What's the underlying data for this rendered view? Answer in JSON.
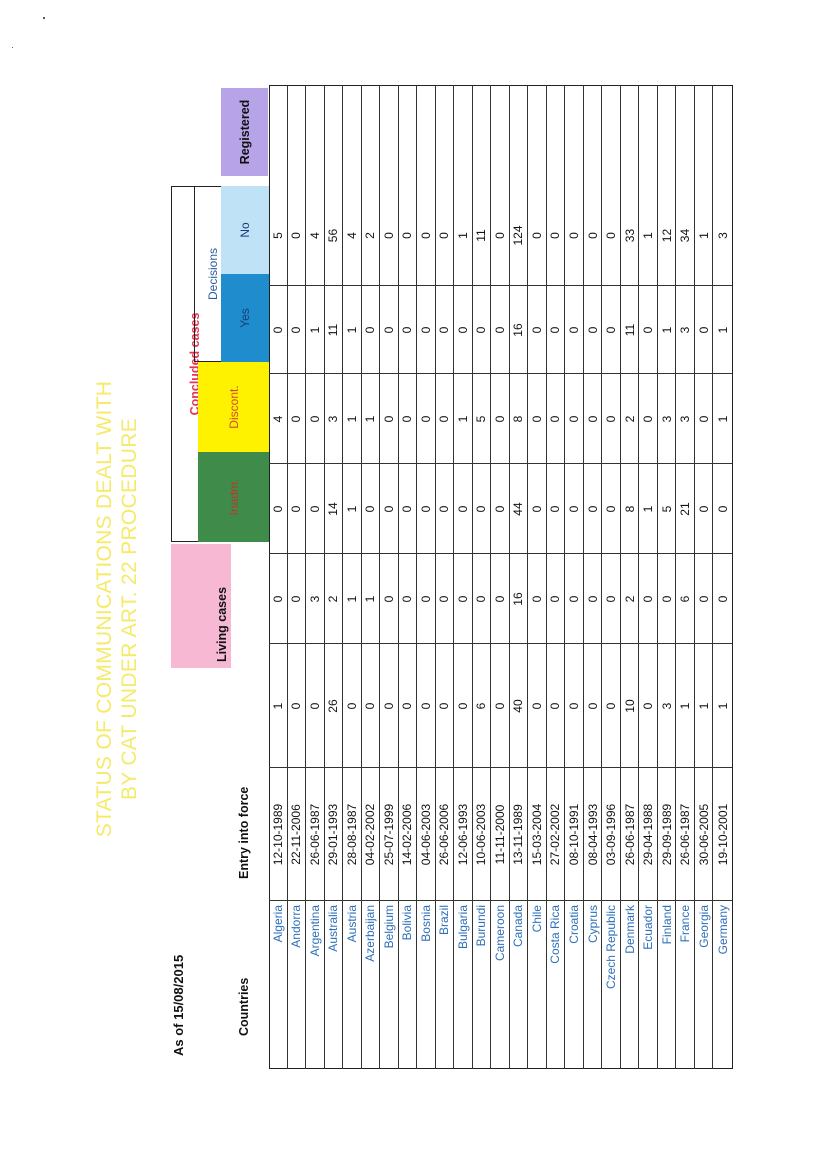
{
  "as_of": "As of 15/08/2015",
  "title": [
    "STATUS OF COMMUNICATIONS DEALT WITH",
    "BY CAT UNDER ART. 22 PROCEDURE"
  ],
  "headers": {
    "countries": "Countries",
    "entry": "Entry into force",
    "living": "Living cases",
    "concluded": "Concluded cases",
    "decisions": "Decisions",
    "inadm": "Inadm.",
    "discont": "Discont.",
    "yes": "Yes",
    "no": "No",
    "registered": "Registered"
  },
  "colors": {
    "living": "#f6b8d3",
    "inadm": "#3f8b4a",
    "discont": "#fff200",
    "yes": "#1f8dcd",
    "no": "#bfe2f6",
    "registered": "#b7a4e8",
    "title": "#f5ea6a",
    "concluded": "#e8344e",
    "country": "#2e6fb8"
  },
  "rows": [
    {
      "country": "Algeria",
      "entry": "12-10-1989",
      "living": "1",
      "inadm": "0",
      "discont": "0",
      "yes": "4",
      "no": "0",
      "registered": "5"
    },
    {
      "country": "Andorra",
      "entry": "22-11-2006",
      "living": "0",
      "inadm": "0",
      "discont": "0",
      "yes": "0",
      "no": "0",
      "registered": "0"
    },
    {
      "country": "Argentina",
      "entry": "26-06-1987",
      "living": "0",
      "inadm": "3",
      "discont": "0",
      "yes": "0",
      "no": "1",
      "registered": "4"
    },
    {
      "country": "Australia",
      "entry": "29-01-1993",
      "living": "26",
      "inadm": "2",
      "discont": "14",
      "yes": "3",
      "no": "11",
      "registered": "56"
    },
    {
      "country": "Austria",
      "entry": "28-08-1987",
      "living": "0",
      "inadm": "1",
      "discont": "1",
      "yes": "1",
      "no": "1",
      "registered": "4"
    },
    {
      "country": "Azerbaijan",
      "entry": "04-02-2002",
      "living": "0",
      "inadm": "1",
      "discont": "0",
      "yes": "1",
      "no": "0",
      "registered": "2"
    },
    {
      "country": "Belgium",
      "entry": "25-07-1999",
      "living": "0",
      "inadm": "0",
      "discont": "0",
      "yes": "0",
      "no": "0",
      "registered": "0"
    },
    {
      "country": "Bolivia",
      "entry": "14-02-2006",
      "living": "0",
      "inadm": "0",
      "discont": "0",
      "yes": "0",
      "no": "0",
      "registered": "0"
    },
    {
      "country": "Bosnia",
      "entry": "04-06-2003",
      "living": "0",
      "inadm": "0",
      "discont": "0",
      "yes": "0",
      "no": "0",
      "registered": "0"
    },
    {
      "country": "Brazil",
      "entry": "26-06-2006",
      "living": "0",
      "inadm": "0",
      "discont": "0",
      "yes": "0",
      "no": "0",
      "registered": "0"
    },
    {
      "country": "Bulgaria",
      "entry": "12-06-1993",
      "living": "0",
      "inadm": "0",
      "discont": "0",
      "yes": "1",
      "no": "0",
      "registered": "1"
    },
    {
      "country": "Burundi",
      "entry": "10-06-2003",
      "living": "6",
      "inadm": "0",
      "discont": "0",
      "yes": "5",
      "no": "0",
      "registered": "11"
    },
    {
      "country": "Cameroon",
      "entry": "11-11-2000",
      "living": "0",
      "inadm": "0",
      "discont": "0",
      "yes": "0",
      "no": "0",
      "registered": "0"
    },
    {
      "country": "Canada",
      "entry": "13-11-1989",
      "living": "40",
      "inadm": "16",
      "discont": "44",
      "yes": "8",
      "no": "16",
      "registered": "124"
    },
    {
      "country": "Chile",
      "entry": "15-03-2004",
      "living": "0",
      "inadm": "0",
      "discont": "0",
      "yes": "0",
      "no": "0",
      "registered": "0"
    },
    {
      "country": "Costa Rica",
      "entry": "27-02-2002",
      "living": "0",
      "inadm": "0",
      "discont": "0",
      "yes": "0",
      "no": "0",
      "registered": "0"
    },
    {
      "country": "Croatia",
      "entry": "08-10-1991",
      "living": "0",
      "inadm": "0",
      "discont": "0",
      "yes": "0",
      "no": "0",
      "registered": "0"
    },
    {
      "country": "Cyprus",
      "entry": "08-04-1993",
      "living": "0",
      "inadm": "0",
      "discont": "0",
      "yes": "0",
      "no": "0",
      "registered": "0"
    },
    {
      "country": "Czech Republic",
      "entry": "03-09-1996",
      "living": "0",
      "inadm": "0",
      "discont": "0",
      "yes": "0",
      "no": "0",
      "registered": "0"
    },
    {
      "country": "Denmark",
      "entry": "26-06-1987",
      "living": "10",
      "inadm": "2",
      "discont": "8",
      "yes": "2",
      "no": "11",
      "registered": "33"
    },
    {
      "country": "Ecuador",
      "entry": "29-04-1988",
      "living": "0",
      "inadm": "0",
      "discont": "1",
      "yes": "0",
      "no": "0",
      "registered": "1"
    },
    {
      "country": "Finland",
      "entry": "29-09-1989",
      "living": "3",
      "inadm": "0",
      "discont": "5",
      "yes": "3",
      "no": "1",
      "registered": "12"
    },
    {
      "country": "France",
      "entry": "26-06-1987",
      "living": "1",
      "inadm": "6",
      "discont": "21",
      "yes": "3",
      "no": "3",
      "registered": "34"
    },
    {
      "country": "Georgia",
      "entry": "30-06-2005",
      "living": "1",
      "inadm": "0",
      "discont": "0",
      "yes": "0",
      "no": "0",
      "registered": "1"
    },
    {
      "country": "Germany",
      "entry": "19-10-2001",
      "living": "1",
      "inadm": "0",
      "discont": "0",
      "yes": "1",
      "no": "1",
      "registered": "3"
    }
  ]
}
